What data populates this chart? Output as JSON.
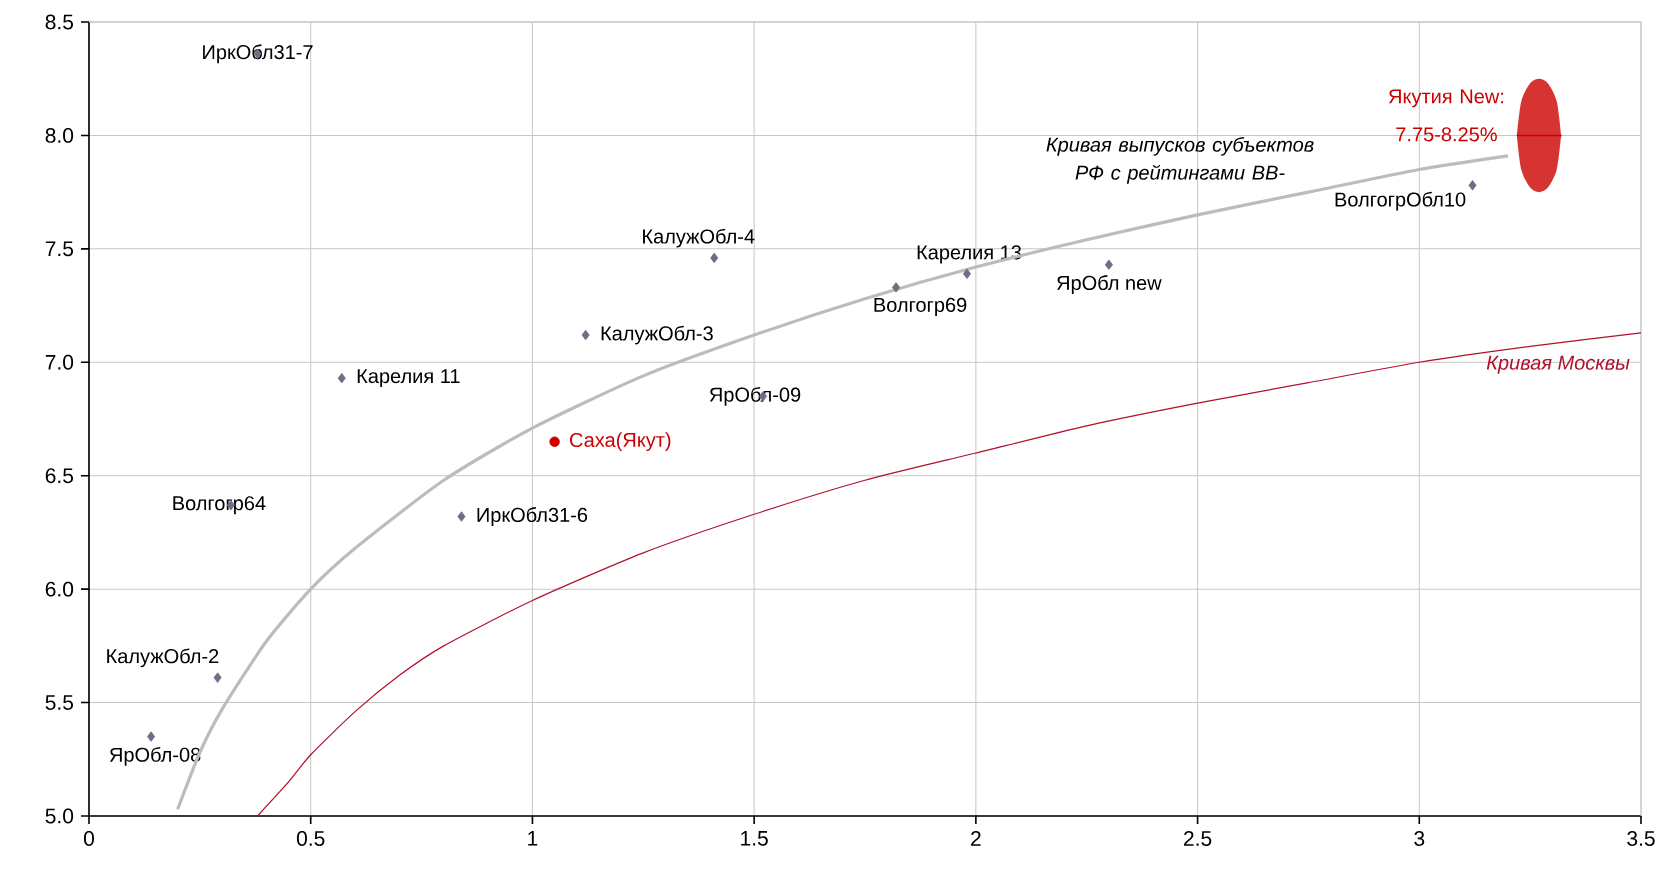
{
  "chart_data": {
    "type": "scatter",
    "xlim": [
      0,
      3.5
    ],
    "ylim": [
      5,
      8.5
    ],
    "grid": true,
    "xticks": [
      0,
      0.5,
      1,
      1.5,
      2,
      2.5,
      3,
      3.5
    ],
    "yticks": [
      {
        "value": 5,
        "label": "5.0"
      },
      5.5,
      {
        "value": 6,
        "label": "6.0"
      },
      6.5,
      {
        "value": 7,
        "label": "7.0"
      },
      7.5,
      {
        "value": 8,
        "label": "8.0"
      },
      8.5
    ],
    "series": [
      {
        "name": "ИркОбл31-7",
        "marker": "diamond",
        "color": "#6e6e86",
        "x": [
          0.38
        ],
        "values": [
          8.36
        ]
      },
      {
        "name": "КалужОбл-4",
        "marker": "diamond",
        "color": "#6e6e86",
        "x": [
          1.41
        ],
        "values": [
          7.46
        ]
      },
      {
        "name": "КалужОбл-3",
        "marker": "diamond",
        "color": "#6e6e86",
        "x": [
          1.12
        ],
        "values": [
          7.12
        ]
      },
      {
        "name": "Карелия 11",
        "marker": "diamond",
        "color": "#6e6e86",
        "x": [
          0.57
        ],
        "values": [
          6.93
        ]
      },
      {
        "name": "ЯрОбл-09",
        "marker": "diamond",
        "color": "#6e6e86",
        "x": [
          1.52
        ],
        "values": [
          6.85
        ]
      },
      {
        "name": "Саха(Якут)",
        "marker": "circle",
        "color": "#cc0000",
        "x": [
          1.05
        ],
        "values": [
          6.65
        ]
      },
      {
        "name": "Волгогр64",
        "marker": "diamond",
        "color": "#6e6e86",
        "x": [
          0.32
        ],
        "values": [
          6.37
        ]
      },
      {
        "name": "ИркОбл31-6",
        "marker": "diamond",
        "color": "#6e6e86",
        "x": [
          0.84
        ],
        "values": [
          6.32
        ]
      },
      {
        "name": "КалужОбл-2",
        "marker": "diamond",
        "color": "#6e6e86",
        "x": [
          0.29
        ],
        "values": [
          5.61
        ]
      },
      {
        "name": "ЯрОбл-08",
        "marker": "diamond",
        "color": "#6e6e86",
        "x": [
          0.14
        ],
        "values": [
          5.35
        ]
      },
      {
        "name": "Волгогр69",
        "marker": "diamond",
        "color": "#6e6e86",
        "x": [
          1.82
        ],
        "values": [
          7.33
        ]
      },
      {
        "name": "Карелия 13",
        "marker": "diamond",
        "color": "#6e6e86",
        "x": [
          1.98
        ],
        "values": [
          7.39
        ]
      },
      {
        "name": "ЯрОбл new",
        "marker": "diamond",
        "color": "#6e6e86",
        "x": [
          2.3
        ],
        "values": [
          7.43
        ]
      },
      {
        "name": "ВолгогрОбл10",
        "marker": "diamond",
        "color": "#6e6e86",
        "x": [
          3.12
        ],
        "values": [
          7.78
        ]
      },
      {
        "name": "Якутия New: 7.75-8.25%",
        "type": "line",
        "color": "#cc0000",
        "x": [
          3.22,
          3.23,
          3.25,
          3.27,
          3.29,
          3.31,
          3.32
        ],
        "values": [
          8.0,
          8.0,
          8.0,
          8.0,
          8.0,
          8.0,
          8.0
        ],
        "lower": [
          8.0,
          7.85,
          7.77,
          7.75,
          7.77,
          7.85,
          8.0
        ],
        "upper": [
          8.0,
          8.15,
          8.23,
          8.25,
          8.23,
          8.15,
          8.0
        ]
      },
      {
        "name": "Кривая выпусков субъектов РФ с рейтингами BB-",
        "type": "line",
        "color": "#bcbcbc",
        "x": [
          0.2,
          0.25,
          0.3,
          0.4,
          0.5,
          0.6,
          0.8,
          1,
          1.25,
          1.5,
          1.75,
          2,
          2.25,
          2.5,
          2.75,
          3,
          3.2
        ],
        "values": [
          5.03,
          5.28,
          5.47,
          5.77,
          6.0,
          6.18,
          6.48,
          6.71,
          6.94,
          7.12,
          7.28,
          7.42,
          7.54,
          7.65,
          7.75,
          7.85,
          7.91
        ]
      },
      {
        "name": "Кривая Москвы",
        "type": "line",
        "color": "#b0102a",
        "x": [
          0.38,
          0.45,
          0.5,
          0.6,
          0.7,
          0.8,
          1,
          1.25,
          1.5,
          1.75,
          2,
          2.25,
          2.5,
          2.75,
          3,
          3.25,
          3.5
        ],
        "values": [
          5.0,
          5.15,
          5.27,
          5.46,
          5.62,
          5.75,
          5.95,
          6.16,
          6.33,
          6.48,
          6.6,
          6.72,
          6.82,
          6.91,
          7.0,
          7.07,
          7.13
        ]
      }
    ]
  }
}
